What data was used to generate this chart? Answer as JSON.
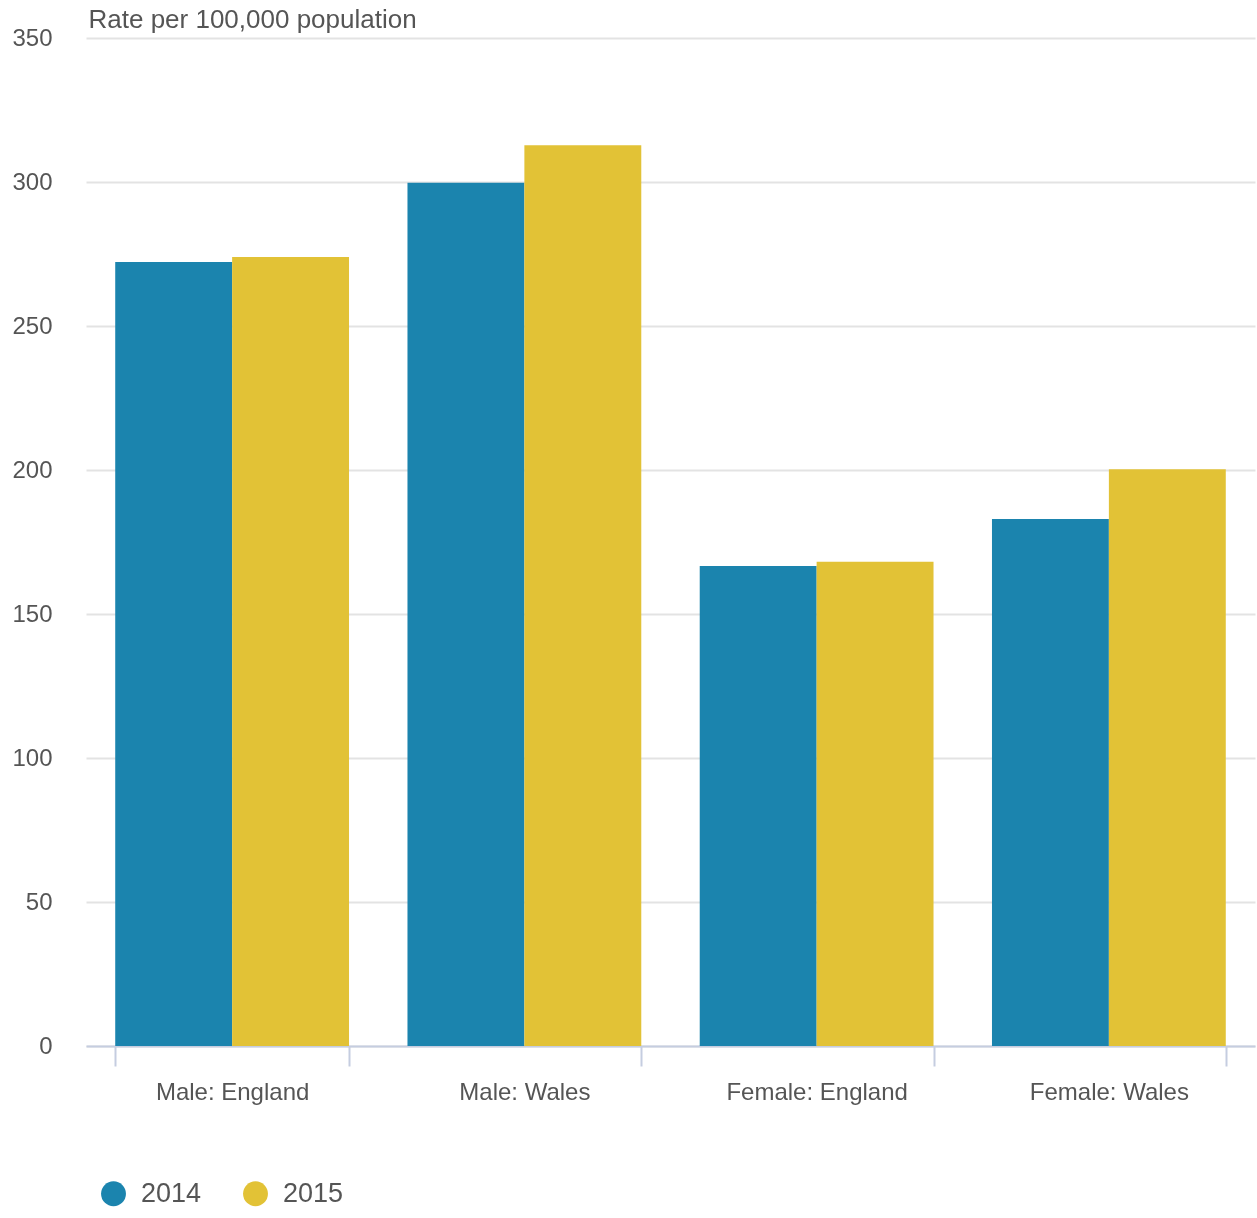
{
  "chart_data": {
    "type": "bar",
    "ylabel": "Rate per 100,000 population",
    "categories": [
      "Male: England",
      "Male: Wales",
      "Female: England",
      "Female: Wales"
    ],
    "series": [
      {
        "name": "2014",
        "color": "#1b84ae",
        "values": [
          272.2,
          299.7,
          166.7,
          183.0
        ]
      },
      {
        "name": "2015",
        "color": "#e2c236",
        "values": [
          274.0,
          312.8,
          168.1,
          200.3
        ]
      }
    ],
    "ylim": [
      0,
      350
    ],
    "yticks": [
      0,
      50,
      100,
      150,
      200,
      250,
      300,
      350
    ],
    "grid": "y",
    "legend": "bottom left"
  }
}
